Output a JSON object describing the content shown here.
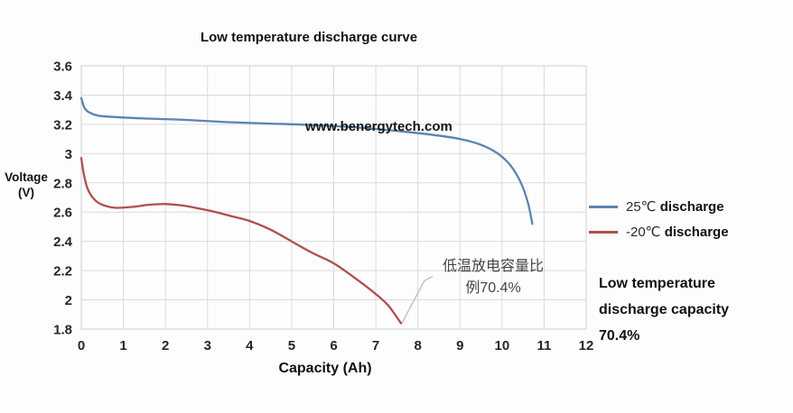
{
  "chart_data": {
    "type": "line",
    "title": "Low temperature discharge curve",
    "xlabel": "Capacity (Ah)",
    "ylabel_lines": [
      "Voltage",
      "(V)"
    ],
    "watermark": "www.benergytech.com",
    "xlim": [
      0,
      12
    ],
    "ylim": [
      1.8,
      3.6
    ],
    "x_ticks": [
      0,
      1,
      2,
      3,
      4,
      5,
      6,
      7,
      8,
      9,
      10,
      11,
      12
    ],
    "y_ticks": [
      3.6,
      3.4,
      3.2,
      3.0,
      2.8,
      2.6,
      2.4,
      2.2,
      2.0,
      1.8
    ],
    "y_tick_labels": [
      "3.6",
      "3.4",
      "3.2",
      "3",
      "2.8",
      "2.6",
      "2.4",
      "2.2",
      "2",
      "1.8"
    ],
    "grid": true,
    "legend_position": "right-outside",
    "series": [
      {
        "name": "25℃ discharge",
        "color": "#5b84ad",
        "points": [
          [
            0,
            3.38
          ],
          [
            0.08,
            3.31
          ],
          [
            0.2,
            3.28
          ],
          [
            0.4,
            3.26
          ],
          [
            0.8,
            3.25
          ],
          [
            1.5,
            3.24
          ],
          [
            2.5,
            3.23
          ],
          [
            3.5,
            3.215
          ],
          [
            4.5,
            3.205
          ],
          [
            5.5,
            3.195
          ],
          [
            6.5,
            3.18
          ],
          [
            7.5,
            3.155
          ],
          [
            8.3,
            3.13
          ],
          [
            9,
            3.1
          ],
          [
            9.5,
            3.06
          ],
          [
            9.9,
            3.0
          ],
          [
            10.2,
            2.92
          ],
          [
            10.45,
            2.8
          ],
          [
            10.62,
            2.66
          ],
          [
            10.72,
            2.52
          ]
        ]
      },
      {
        "name": "-20℃ discharge",
        "color": "#af504c",
        "points": [
          [
            0,
            2.97
          ],
          [
            0.06,
            2.86
          ],
          [
            0.15,
            2.76
          ],
          [
            0.3,
            2.69
          ],
          [
            0.5,
            2.65
          ],
          [
            0.8,
            2.63
          ],
          [
            1.2,
            2.635
          ],
          [
            1.6,
            2.65
          ],
          [
            2,
            2.655
          ],
          [
            2.4,
            2.645
          ],
          [
            2.8,
            2.625
          ],
          [
            3.2,
            2.6
          ],
          [
            3.6,
            2.57
          ],
          [
            4,
            2.54
          ],
          [
            4.5,
            2.48
          ],
          [
            5,
            2.4
          ],
          [
            5.5,
            2.32
          ],
          [
            6,
            2.25
          ],
          [
            6.5,
            2.15
          ],
          [
            7,
            2.04
          ],
          [
            7.3,
            1.96
          ],
          [
            7.6,
            1.84
          ]
        ]
      }
    ],
    "annotation": {
      "line1": "低温放电容量比",
      "line2": "例70.4%",
      "callout_points": [
        [
          7.62,
          1.84
        ],
        [
          8.15,
          2.13
        ],
        [
          8.35,
          2.16
        ]
      ]
    }
  },
  "legend": {
    "entries": [
      {
        "temp": "25℃",
        "rest": " discharge",
        "color": "#5b84ad"
      },
      {
        "temp": "-20℃",
        "rest": " discharge",
        "color": "#af504c"
      }
    ]
  },
  "side_note": {
    "line1": "Low temperature",
    "line2": "discharge capacity",
    "line3": "70.4%"
  },
  "colors": {
    "grid": "#dbdbdb",
    "plot_border": "#d0d0d0",
    "callout": "#c2c2c2",
    "axis_text": "#262626"
  }
}
